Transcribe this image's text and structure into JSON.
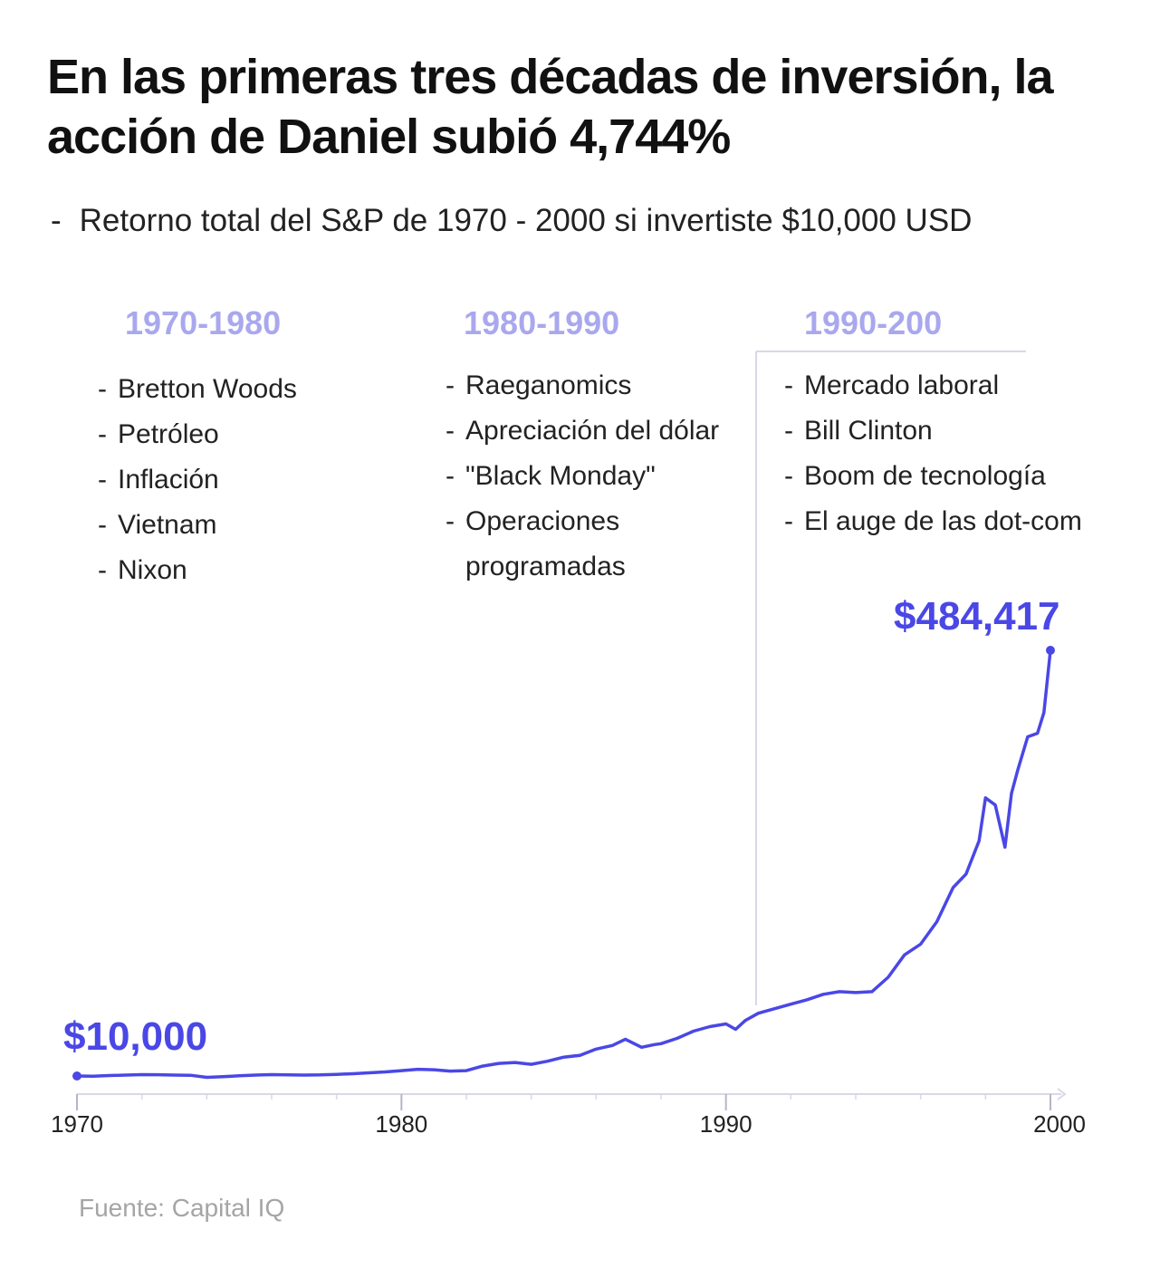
{
  "title": "En las primeras tres décadas de inversión, la acción de Daniel subió 4,744%",
  "subtitle": "Retorno total del S&P de 1970 - 2000 si invertiste $10,000 USD",
  "subtitle_bullet": "-",
  "eras": [
    {
      "title": "1970-1980",
      "items": [
        "Bretton Woods",
        "Petróleo",
        "Inflación",
        "Vietnam",
        "Nixon"
      ]
    },
    {
      "title": "1980-1990",
      "items": [
        "Raeganomics",
        "Apreciación del dólar",
        "\"Black Monday\"",
        "Operaciones programadas"
      ]
    },
    {
      "title": "1990-200",
      "items": [
        "Mercado laboral",
        "Bill Clinton",
        "Boom de tecnología",
        "El auge de las dot-com"
      ]
    }
  ],
  "start_label": "$10,000",
  "end_label": "$484,417",
  "source": "Fuente: Capital IQ",
  "colors": {
    "line": "#4a47e6",
    "era_title": "#a9a8ee",
    "axis": "#d8d8e8",
    "source": "#a5a5a5"
  },
  "chart_data": {
    "type": "line",
    "title": "En las primeras tres décadas de inversión, la acción de Daniel subió 4,744%",
    "subtitle": "Retorno total del S&P de 1970 - 2000 si invertiste $10,000 USD",
    "xlabel": "",
    "ylabel": "",
    "xlim": [
      1970,
      2000
    ],
    "ylim": [
      0,
      550000
    ],
    "x_ticks": [
      "1970",
      "1980",
      "1990",
      "2000"
    ],
    "grid": false,
    "divider_x": 1990,
    "series": [
      {
        "x": [
          1970.0,
          1970.5,
          1971.0,
          1971.5,
          1972.0,
          1972.5,
          1973.0,
          1973.5,
          1974.0,
          1974.5,
          1975.0,
          1975.5,
          1976.0,
          1976.5,
          1977.0,
          1977.5,
          1978.0,
          1978.5,
          1979.0,
          1979.5,
          1980.0,
          1980.5,
          1981.0,
          1981.5,
          1982.0,
          1982.5,
          1983.0,
          1983.5,
          1984.0,
          1984.5,
          1985.0,
          1985.5,
          1986.0,
          1986.5,
          1986.9,
          1987.4,
          1987.8,
          1988.0,
          1988.5,
          1989.0,
          1989.5,
          1990.0,
          1990.3,
          1990.6,
          1991.0,
          1991.5,
          1992.0,
          1992.5,
          1993.0,
          1993.5,
          1994.0,
          1994.5,
          1995.0,
          1995.5,
          1996.0,
          1996.5,
          1997.0,
          1997.4,
          1997.8,
          1998.0,
          1998.3,
          1998.6,
          1998.8,
          1999.0,
          1999.3,
          1999.6,
          1999.8,
          2000.0
        ],
        "values": [
          10000,
          9800,
          10500,
          11000,
          11500,
          11400,
          11000,
          10800,
          8500,
          9200,
          10200,
          11000,
          11500,
          11300,
          11000,
          11200,
          11800,
          12500,
          13500,
          14500,
          16000,
          17500,
          17000,
          15500,
          16000,
          21000,
          24000,
          25000,
          23000,
          26500,
          31000,
          33000,
          40000,
          44000,
          51000,
          42000,
          45000,
          46000,
          52000,
          60000,
          65000,
          68000,
          62000,
          72000,
          80000,
          85000,
          90000,
          95000,
          101000,
          104000,
          103000,
          104000,
          120000,
          145000,
          157000,
          182000,
          220000,
          235000,
          272000,
          320000,
          312000,
          265000,
          325000,
          352000,
          388000,
          392000,
          415000,
          484417
        ]
      }
    ]
  }
}
